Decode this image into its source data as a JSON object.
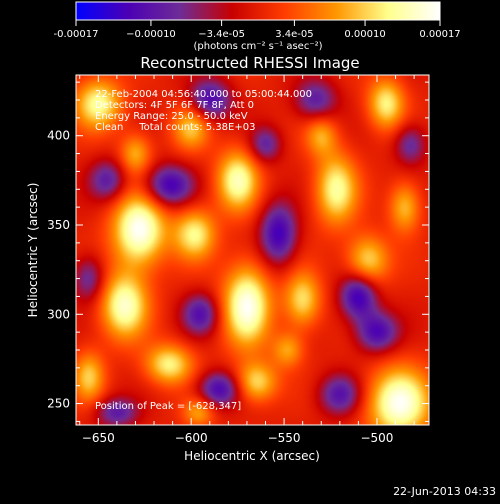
{
  "chart_data": {
    "type": "heatmap",
    "title": "Reconstructed RHESSI Image",
    "xlabel": "Heliocentric X (arcsec)",
    "ylabel": "Heliocentric Y (arcsec)",
    "xlim": [
      -662,
      -472
    ],
    "ylim": [
      238,
      434
    ],
    "x_ticks": [
      -650,
      -600,
      -550,
      -500
    ],
    "y_ticks": [
      250,
      300,
      350,
      400
    ],
    "colorbar": {
      "range": [
        -0.00017,
        0.00017
      ],
      "tick_values": [
        -0.00017,
        -0.0001,
        -3.4e-05,
        3.4e-05,
        0.0001,
        0.00017
      ],
      "tick_labels": [
        "-0.00017",
        "−0.00010",
        "−3.4e-05",
        "3.4e-05",
        "0.00010",
        "0.00017"
      ],
      "units_label": "(photons cm⁻² s⁻¹ asec⁻²)",
      "colors": [
        "#0000ff",
        "#4b00b4",
        "#6e2c96",
        "#c80000",
        "#ff3c00",
        "#ff9600",
        "#ffff8c",
        "#ffffff"
      ]
    },
    "annotations": [
      "22-Feb-2004 04:56:40.000 to 05:00:44.000",
      "Detectors: 4F 5F 6F 7F 8F, Att 0",
      "Energy Range: 25.0 - 50.0 keV",
      "Clean     Total counts: 5.38E+03"
    ],
    "peak_label": "Position of Peak = [-628,347]",
    "peak_position": [
      -628,
      347
    ],
    "blobs": [
      {
        "x": -628,
        "y": 347,
        "sx": 10,
        "sy": 14,
        "a": 1.0
      },
      {
        "x": -570,
        "y": 305,
        "sx": 9,
        "sy": 16,
        "a": 0.95
      },
      {
        "x": -636,
        "y": 305,
        "sx": 9,
        "sy": 13,
        "a": 0.85
      },
      {
        "x": -575,
        "y": 375,
        "sx": 8,
        "sy": 12,
        "a": 0.8
      },
      {
        "x": -522,
        "y": 370,
        "sx": 8,
        "sy": 14,
        "a": 0.75
      },
      {
        "x": -598,
        "y": 345,
        "sx": 8,
        "sy": 10,
        "a": 0.7
      },
      {
        "x": -488,
        "y": 250,
        "sx": 12,
        "sy": 14,
        "a": 0.95
      },
      {
        "x": -540,
        "y": 308,
        "sx": 7,
        "sy": 11,
        "a": 0.65
      },
      {
        "x": -505,
        "y": 330,
        "sx": 8,
        "sy": 10,
        "a": 0.65
      },
      {
        "x": -612,
        "y": 272,
        "sx": 9,
        "sy": 8,
        "a": 0.7
      },
      {
        "x": -565,
        "y": 262,
        "sx": 8,
        "sy": 8,
        "a": 0.65
      },
      {
        "x": -650,
        "y": 418,
        "sx": 9,
        "sy": 10,
        "a": 0.75
      },
      {
        "x": -495,
        "y": 418,
        "sx": 7,
        "sy": 10,
        "a": 0.7
      },
      {
        "x": -600,
        "y": 405,
        "sx": 7,
        "sy": 9,
        "a": 0.55
      },
      {
        "x": -630,
        "y": 390,
        "sx": 6,
        "sy": 8,
        "a": 0.5
      },
      {
        "x": -485,
        "y": 360,
        "sx": 6,
        "sy": 10,
        "a": 0.55
      },
      {
        "x": -655,
        "y": 265,
        "sx": 6,
        "sy": 10,
        "a": 0.55
      },
      {
        "x": -530,
        "y": 400,
        "sx": 6,
        "sy": 8,
        "a": 0.45
      },
      {
        "x": -596,
        "y": 245,
        "sx": 6,
        "sy": 6,
        "a": 0.45
      },
      {
        "x": -548,
        "y": 280,
        "sx": 6,
        "sy": 7,
        "a": 0.45
      },
      {
        "x": -612,
        "y": 372,
        "sx": 9,
        "sy": 8,
        "a": -0.75
      },
      {
        "x": -590,
        "y": 420,
        "sx": 8,
        "sy": 8,
        "a": -0.7
      },
      {
        "x": -553,
        "y": 345,
        "sx": 7,
        "sy": 12,
        "a": -0.75
      },
      {
        "x": -510,
        "y": 310,
        "sx": 7,
        "sy": 9,
        "a": -0.8
      },
      {
        "x": -500,
        "y": 290,
        "sx": 8,
        "sy": 8,
        "a": -0.7
      },
      {
        "x": -585,
        "y": 258,
        "sx": 8,
        "sy": 7,
        "a": -0.7
      },
      {
        "x": -645,
        "y": 375,
        "sx": 7,
        "sy": 8,
        "a": -0.55
      },
      {
        "x": -520,
        "y": 255,
        "sx": 8,
        "sy": 8,
        "a": -0.6
      },
      {
        "x": -655,
        "y": 320,
        "sx": 6,
        "sy": 9,
        "a": -0.5
      },
      {
        "x": -533,
        "y": 420,
        "sx": 8,
        "sy": 8,
        "a": -0.55
      },
      {
        "x": -595,
        "y": 300,
        "sx": 7,
        "sy": 8,
        "a": -0.6
      },
      {
        "x": -482,
        "y": 395,
        "sx": 6,
        "sy": 8,
        "a": -0.5
      },
      {
        "x": -640,
        "y": 245,
        "sx": 8,
        "sy": 6,
        "a": -0.55
      },
      {
        "x": -560,
        "y": 395,
        "sx": 6,
        "sy": 7,
        "a": -0.5
      }
    ]
  },
  "footer": {
    "timestamp": "22-Jun-2013 04:33"
  }
}
